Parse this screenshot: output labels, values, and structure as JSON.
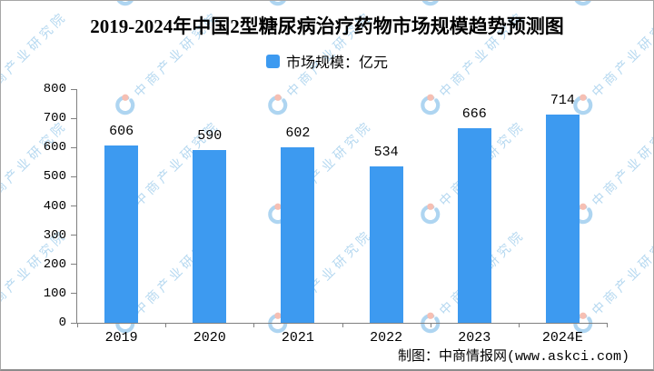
{
  "title": "2019-2024年中国2型糖尿病治疗药物市场规模趋势预测图",
  "legend": {
    "label": "市场规模：亿元",
    "color": "#3d9af0"
  },
  "chart_data": {
    "type": "bar",
    "title": "2019-2024年中国2型糖尿病治疗药物市场规模趋势预测图",
    "categories": [
      "2019",
      "2020",
      "2021",
      "2022",
      "2023",
      "2024E"
    ],
    "values": [
      606,
      590,
      602,
      534,
      666,
      714
    ],
    "series_name": "市场规模",
    "unit": "亿元",
    "xlabel": "",
    "ylabel": "",
    "ylim": [
      0,
      800
    ],
    "ytick_step": 100,
    "grid": false,
    "legend_position": "top",
    "bar_color": "#3d9af0"
  },
  "footer": {
    "credit": "制图：中商情报网(www.askci.com)"
  },
  "watermark": {
    "text": "中商产业研究院",
    "text_color": "#b5d8f0",
    "logo_blue": "#aed5f1",
    "logo_red": "#f6bfb3"
  },
  "colors": {
    "axis": "#808080",
    "text": "#000000",
    "background": "#ffffff"
  }
}
